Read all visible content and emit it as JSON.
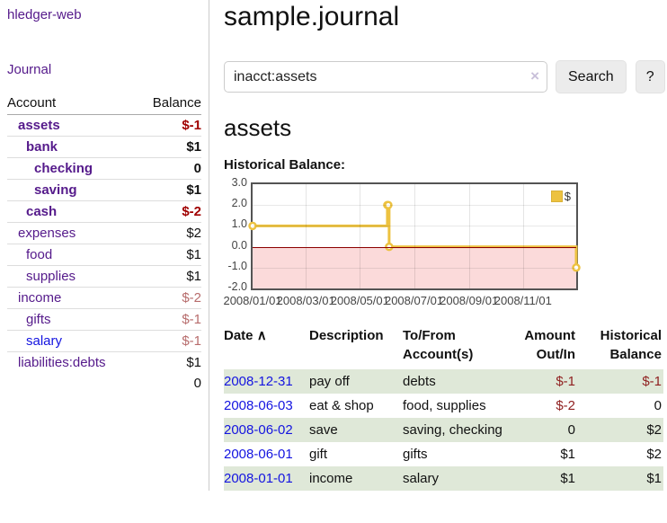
{
  "sidebar": {
    "app_title": "hledger-web",
    "journal_link": "Journal",
    "accounts_table": {
      "col_account": "Account",
      "col_balance": "Balance",
      "rows": [
        {
          "name": "assets",
          "depth": 1,
          "bold": true,
          "balance": "$-1",
          "negative": "strong"
        },
        {
          "name": "bank",
          "depth": 2,
          "bold": true,
          "balance": "$1"
        },
        {
          "name": "checking",
          "depth": 3,
          "bold": true,
          "balance": "0"
        },
        {
          "name": "saving",
          "depth": 3,
          "bold": true,
          "balance": "$1"
        },
        {
          "name": "cash",
          "depth": 2,
          "bold": true,
          "balance": "$-2",
          "negative": "strong"
        },
        {
          "name": "expenses",
          "depth": 1,
          "bold": false,
          "balance": "$2"
        },
        {
          "name": "food",
          "depth": 2,
          "bold": false,
          "balance": "$1"
        },
        {
          "name": "supplies",
          "depth": 2,
          "bold": false,
          "balance": "$1"
        },
        {
          "name": "income",
          "depth": 1,
          "bold": false,
          "balance": "$-2",
          "negative": "muted"
        },
        {
          "name": "gifts",
          "depth": 2,
          "bold": false,
          "balance": "$-1",
          "negative": "muted"
        },
        {
          "name": "salary",
          "depth": 2,
          "bold": false,
          "balance": "$-1",
          "negative": "muted",
          "link": "blue"
        },
        {
          "name": "liabilities:debts",
          "depth": 1,
          "bold": false,
          "balance": "$1"
        }
      ],
      "total": "0"
    }
  },
  "main": {
    "title": "sample.journal",
    "search": {
      "value": "inacct:assets",
      "clear_icon": "×",
      "button_label": "Search",
      "help_label": "?"
    },
    "account_heading": "assets",
    "chart_label": "Historical Balance:",
    "transactions": {
      "headers": {
        "date": "Date",
        "sort_icon": "∧",
        "description": "Description",
        "tofrom": "To/From Account(s)",
        "amount": "Amount Out/In",
        "balance": "Historical Balance"
      },
      "rows": [
        {
          "date": "2008-12-31",
          "description": "pay off",
          "accounts": "debts",
          "amount": "$-1",
          "amount_neg": true,
          "balance": "$-1",
          "balance_neg": true
        },
        {
          "date": "2008-06-03",
          "description": "eat & shop",
          "accounts": "food, supplies",
          "amount": "$-2",
          "amount_neg": true,
          "balance": "0",
          "balance_neg": false
        },
        {
          "date": "2008-06-02",
          "description": "save",
          "accounts": "saving, checking",
          "amount": "0",
          "amount_neg": false,
          "balance": "$2",
          "balance_neg": false
        },
        {
          "date": "2008-06-01",
          "description": "gift",
          "accounts": "gifts",
          "amount": "$1",
          "amount_neg": false,
          "balance": "$2",
          "balance_neg": false
        },
        {
          "date": "2008-01-01",
          "description": "income",
          "accounts": "salary",
          "amount": "$1",
          "amount_neg": false,
          "balance": "$1",
          "balance_neg": false
        }
      ]
    }
  },
  "chart_data": {
    "type": "line",
    "step": true,
    "title": "Historical Balance",
    "legend": "$",
    "legend_position": "top-right",
    "grid": true,
    "series": [
      {
        "name": "$",
        "points": [
          [
            "2008-01-01",
            1
          ],
          [
            "2008-06-01",
            2
          ],
          [
            "2008-06-02",
            2
          ],
          [
            "2008-06-03",
            0
          ],
          [
            "2008-12-31",
            -1
          ]
        ]
      }
    ],
    "x_ticks": [
      "2008/01/01",
      "2008/03/01",
      "2008/05/01",
      "2008/07/01",
      "2008/09/01",
      "2008/11/01"
    ],
    "y_ticks": [
      3.0,
      2.0,
      1.0,
      0.0,
      -1.0,
      -2.0
    ],
    "xlim": [
      "2008-01-01",
      "2008-12-31"
    ],
    "ylim": [
      -2.0,
      3.0
    ],
    "colors": {
      "line": "#edc240",
      "marker_fill": "#ffffff",
      "negative_region": "#fbdada",
      "zero_line": "#8b0000",
      "border": "#545454"
    }
  }
}
